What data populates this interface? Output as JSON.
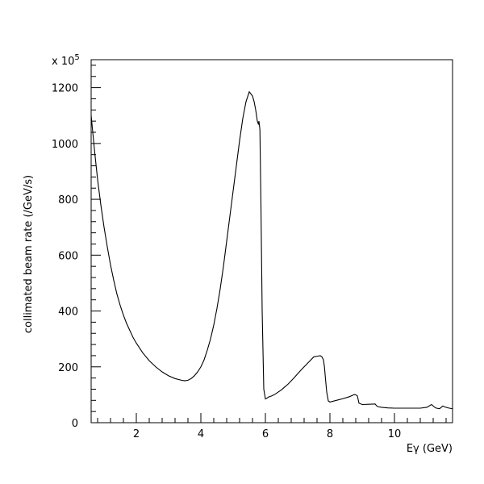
{
  "chart_data": {
    "type": "line",
    "title": "",
    "xlabel": "Eγ (GeV)",
    "ylabel": "collimated beam rate (/GeV/s)",
    "y_multiplier": "x 10",
    "y_multiplier_exp": "5",
    "xlim": [
      0.6,
      11.8
    ],
    "ylim": [
      0,
      1300
    ],
    "xticks": [
      2,
      4,
      6,
      8,
      10
    ],
    "xtick_labels": [
      "2",
      "4",
      "6",
      "8",
      "10"
    ],
    "yticks": [
      0,
      200,
      400,
      600,
      800,
      1000,
      1200
    ],
    "ytick_labels": [
      "0",
      "200",
      "400",
      "600",
      "800",
      "1000",
      "1200"
    ],
    "grid": false,
    "series": [
      {
        "x": [
          0.6,
          0.65,
          0.7,
          0.8,
          0.9,
          1.0,
          1.1,
          1.2,
          1.3,
          1.4,
          1.5,
          1.6,
          1.7,
          1.8,
          1.9,
          2.0,
          2.2,
          2.4,
          2.6,
          2.8,
          3.0,
          3.2,
          3.4,
          3.5,
          3.6,
          3.7,
          3.8,
          3.9,
          4.0,
          4.1,
          4.2,
          4.3,
          4.4,
          4.5,
          4.6,
          4.7,
          4.8,
          4.9,
          5.0,
          5.1,
          5.2,
          5.3,
          5.4,
          5.5,
          5.6,
          5.65,
          5.7,
          5.75,
          5.78,
          5.8,
          5.83,
          5.86,
          5.9,
          5.95,
          6.0,
          6.05,
          6.1,
          6.2,
          6.3,
          6.4,
          6.5,
          6.6,
          6.7,
          6.8,
          6.9,
          7.0,
          7.1,
          7.2,
          7.3,
          7.4,
          7.5,
          7.6,
          7.7,
          7.75,
          7.8,
          7.83,
          7.86,
          7.9,
          7.95,
          8.0,
          8.2,
          8.4,
          8.6,
          8.7,
          8.75,
          8.8,
          8.85,
          8.9,
          9.0,
          9.2,
          9.4,
          9.45,
          9.5,
          9.6,
          9.8,
          10.0,
          10.2,
          10.4,
          10.6,
          10.8,
          11.0,
          11.05,
          11.1,
          11.15,
          11.2,
          11.25,
          11.3,
          11.4,
          11.45,
          11.5,
          11.55,
          11.6,
          11.7,
          11.8
        ],
        "y": [
          1100,
          1040,
          980,
          870,
          780,
          700,
          630,
          565,
          510,
          460,
          420,
          385,
          355,
          330,
          305,
          285,
          250,
          222,
          200,
          182,
          168,
          158,
          152,
          150,
          152,
          158,
          168,
          182,
          200,
          225,
          260,
          300,
          350,
          410,
          480,
          560,
          650,
          740,
          830,
          920,
          1010,
          1090,
          1150,
          1185,
          1170,
          1150,
          1120,
          1080,
          1070,
          1080,
          1050,
          800,
          400,
          120,
          85,
          88,
          92,
          96,
          102,
          110,
          118,
          128,
          138,
          150,
          162,
          175,
          188,
          200,
          212,
          224,
          236,
          238,
          240,
          236,
          225,
          200,
          160,
          110,
          78,
          74,
          80,
          86,
          93,
          98,
          101,
          100,
          96,
          70,
          65,
          66,
          67,
          60,
          57,
          55,
          53,
          52,
          52,
          52,
          52,
          52,
          55,
          58,
          62,
          65,
          60,
          55,
          52,
          50,
          55,
          60,
          57,
          55,
          52,
          50
        ]
      }
    ]
  }
}
